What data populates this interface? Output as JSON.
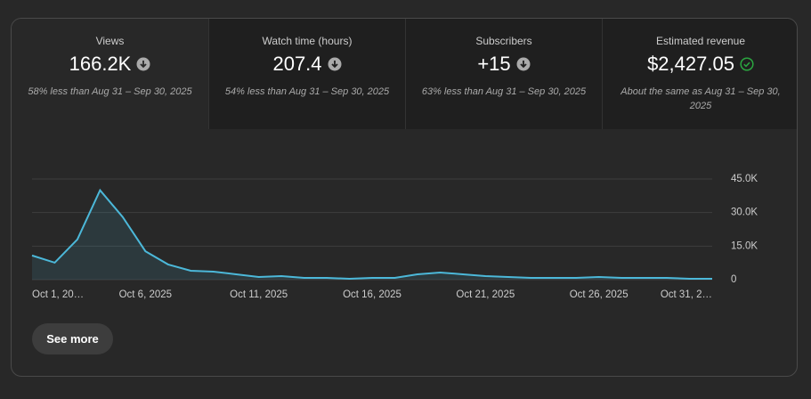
{
  "metrics": [
    {
      "label": "Views",
      "value": "166.2K",
      "comparison": "58% less than Aug 31 – Sep 30, 2025"
    },
    {
      "label": "Watch time (hours)",
      "value": "207.4",
      "comparison": "54% less than Aug 31 – Sep 30, 2025"
    },
    {
      "label": "Subscribers",
      "value": "+15",
      "comparison": "63% less than Aug 31 – Sep 30, 2025"
    },
    {
      "label": "Estimated revenue",
      "value": "$2,427.05",
      "comparison": "About the same as Aug 31 – Sep 30, 2025"
    }
  ],
  "chart_data": {
    "type": "line",
    "categories": [
      "Oct 1, 20…",
      null,
      null,
      null,
      null,
      "Oct 6, 2025",
      null,
      null,
      null,
      null,
      "Oct 11, 2025",
      null,
      null,
      null,
      null,
      "Oct 16, 2025",
      null,
      null,
      null,
      null,
      "Oct 21, 2025",
      null,
      null,
      null,
      null,
      "Oct 26, 2025",
      null,
      null,
      null,
      null,
      "Oct 31, 2…"
    ],
    "values": [
      10800,
      7600,
      18000,
      40000,
      28000,
      12700,
      6800,
      4000,
      3600,
      2400,
      1200,
      1600,
      800,
      800,
      400,
      800,
      800,
      2400,
      3200,
      2400,
      1600,
      1200,
      800,
      800,
      800,
      1200,
      800,
      800,
      800,
      400,
      400
    ],
    "color": "#4cb8d9",
    "ylim": [
      0,
      45000
    ],
    "yticks": [
      0,
      {
        "value": 15000,
        "label": "15.0K"
      },
      {
        "value": 30000,
        "label": "30.0K"
      },
      {
        "value": 45000,
        "label": "45.0K"
      }
    ],
    "grid": true
  },
  "button": "See more"
}
